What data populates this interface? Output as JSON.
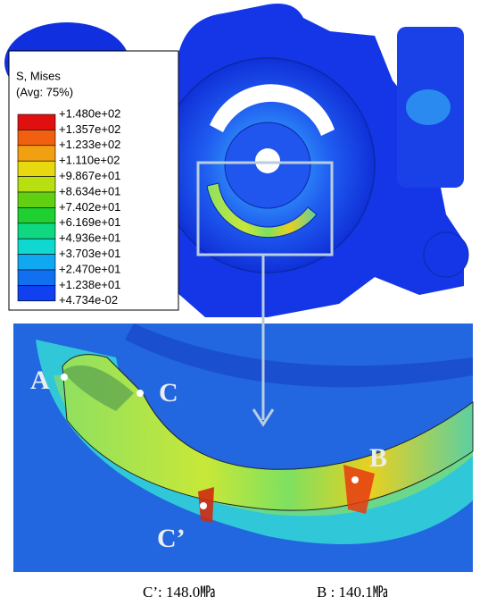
{
  "legend": {
    "title": "S, Mises",
    "subtitle": "(Avg: 75%)",
    "levels": [
      "+1.480e+02",
      "+1.357e+02",
      "+1.233e+02",
      "+1.110e+02",
      "+9.867e+01",
      "+8.634e+01",
      "+7.402e+01",
      "+6.169e+01",
      "+4.936e+01",
      "+3.703e+01",
      "+2.470e+01",
      "+1.238e+01",
      "+4.734e-02"
    ]
  },
  "points": [
    "A",
    "C",
    "C’",
    "B"
  ],
  "caption": [
    "C’: 148.0㎫",
    "B : 140.1㎫"
  ]
}
